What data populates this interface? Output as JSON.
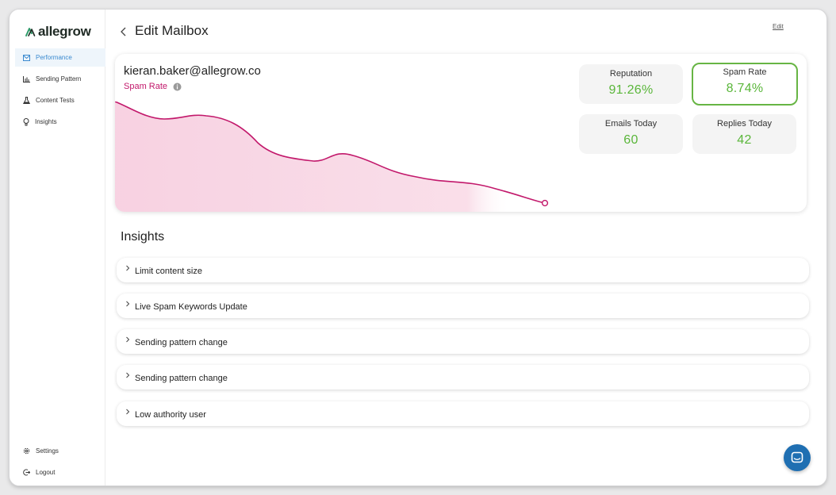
{
  "brand": {
    "name": "allegrow",
    "logo_icon": "allegrow-logo-icon"
  },
  "sidebar": {
    "items": [
      {
        "label": "Performance",
        "icon": "mail-icon",
        "active": true
      },
      {
        "label": "Sending Pattern",
        "icon": "bar-chart-icon",
        "active": false
      },
      {
        "label": "Content Tests",
        "icon": "flask-icon",
        "active": false
      },
      {
        "label": "Insights",
        "icon": "lightbulb-icon",
        "active": false
      }
    ],
    "bottom_items": [
      {
        "label": "Settings",
        "icon": "gear-icon"
      },
      {
        "label": "Logout",
        "icon": "logout-icon"
      }
    ]
  },
  "header": {
    "title": "Edit Mailbox",
    "edit_link": "Edit",
    "back_icon": "chevron-left-icon"
  },
  "mailbox": {
    "email": "kieran.baker@allegrow.co",
    "metric_label": "Spam Rate",
    "info_icon": "info-icon"
  },
  "stats": [
    {
      "label": "Reputation",
      "value": "91.26%",
      "highlight": false
    },
    {
      "label": "Spam Rate",
      "value": "8.74%",
      "highlight": true
    },
    {
      "label": "Emails Today",
      "value": "60",
      "highlight": false
    },
    {
      "label": "Replies Today",
      "value": "42",
      "highlight": false
    }
  ],
  "colors": {
    "accent_line": "#c2186b",
    "area_fill": "#f9dbe7",
    "stat_green": "#5ab63a",
    "highlight_border": "#67b544",
    "active_nav": "#3a8ad0",
    "chat_button": "#1f6fb2"
  },
  "insights": {
    "title": "Insights",
    "items": [
      {
        "label": "Limit content size"
      },
      {
        "label": "Live Spam Keywords Update"
      },
      {
        "label": "Sending pattern change"
      },
      {
        "label": "Sending pattern change"
      },
      {
        "label": "Low authority user"
      }
    ]
  },
  "chat": {
    "icon": "chat-icon"
  }
}
